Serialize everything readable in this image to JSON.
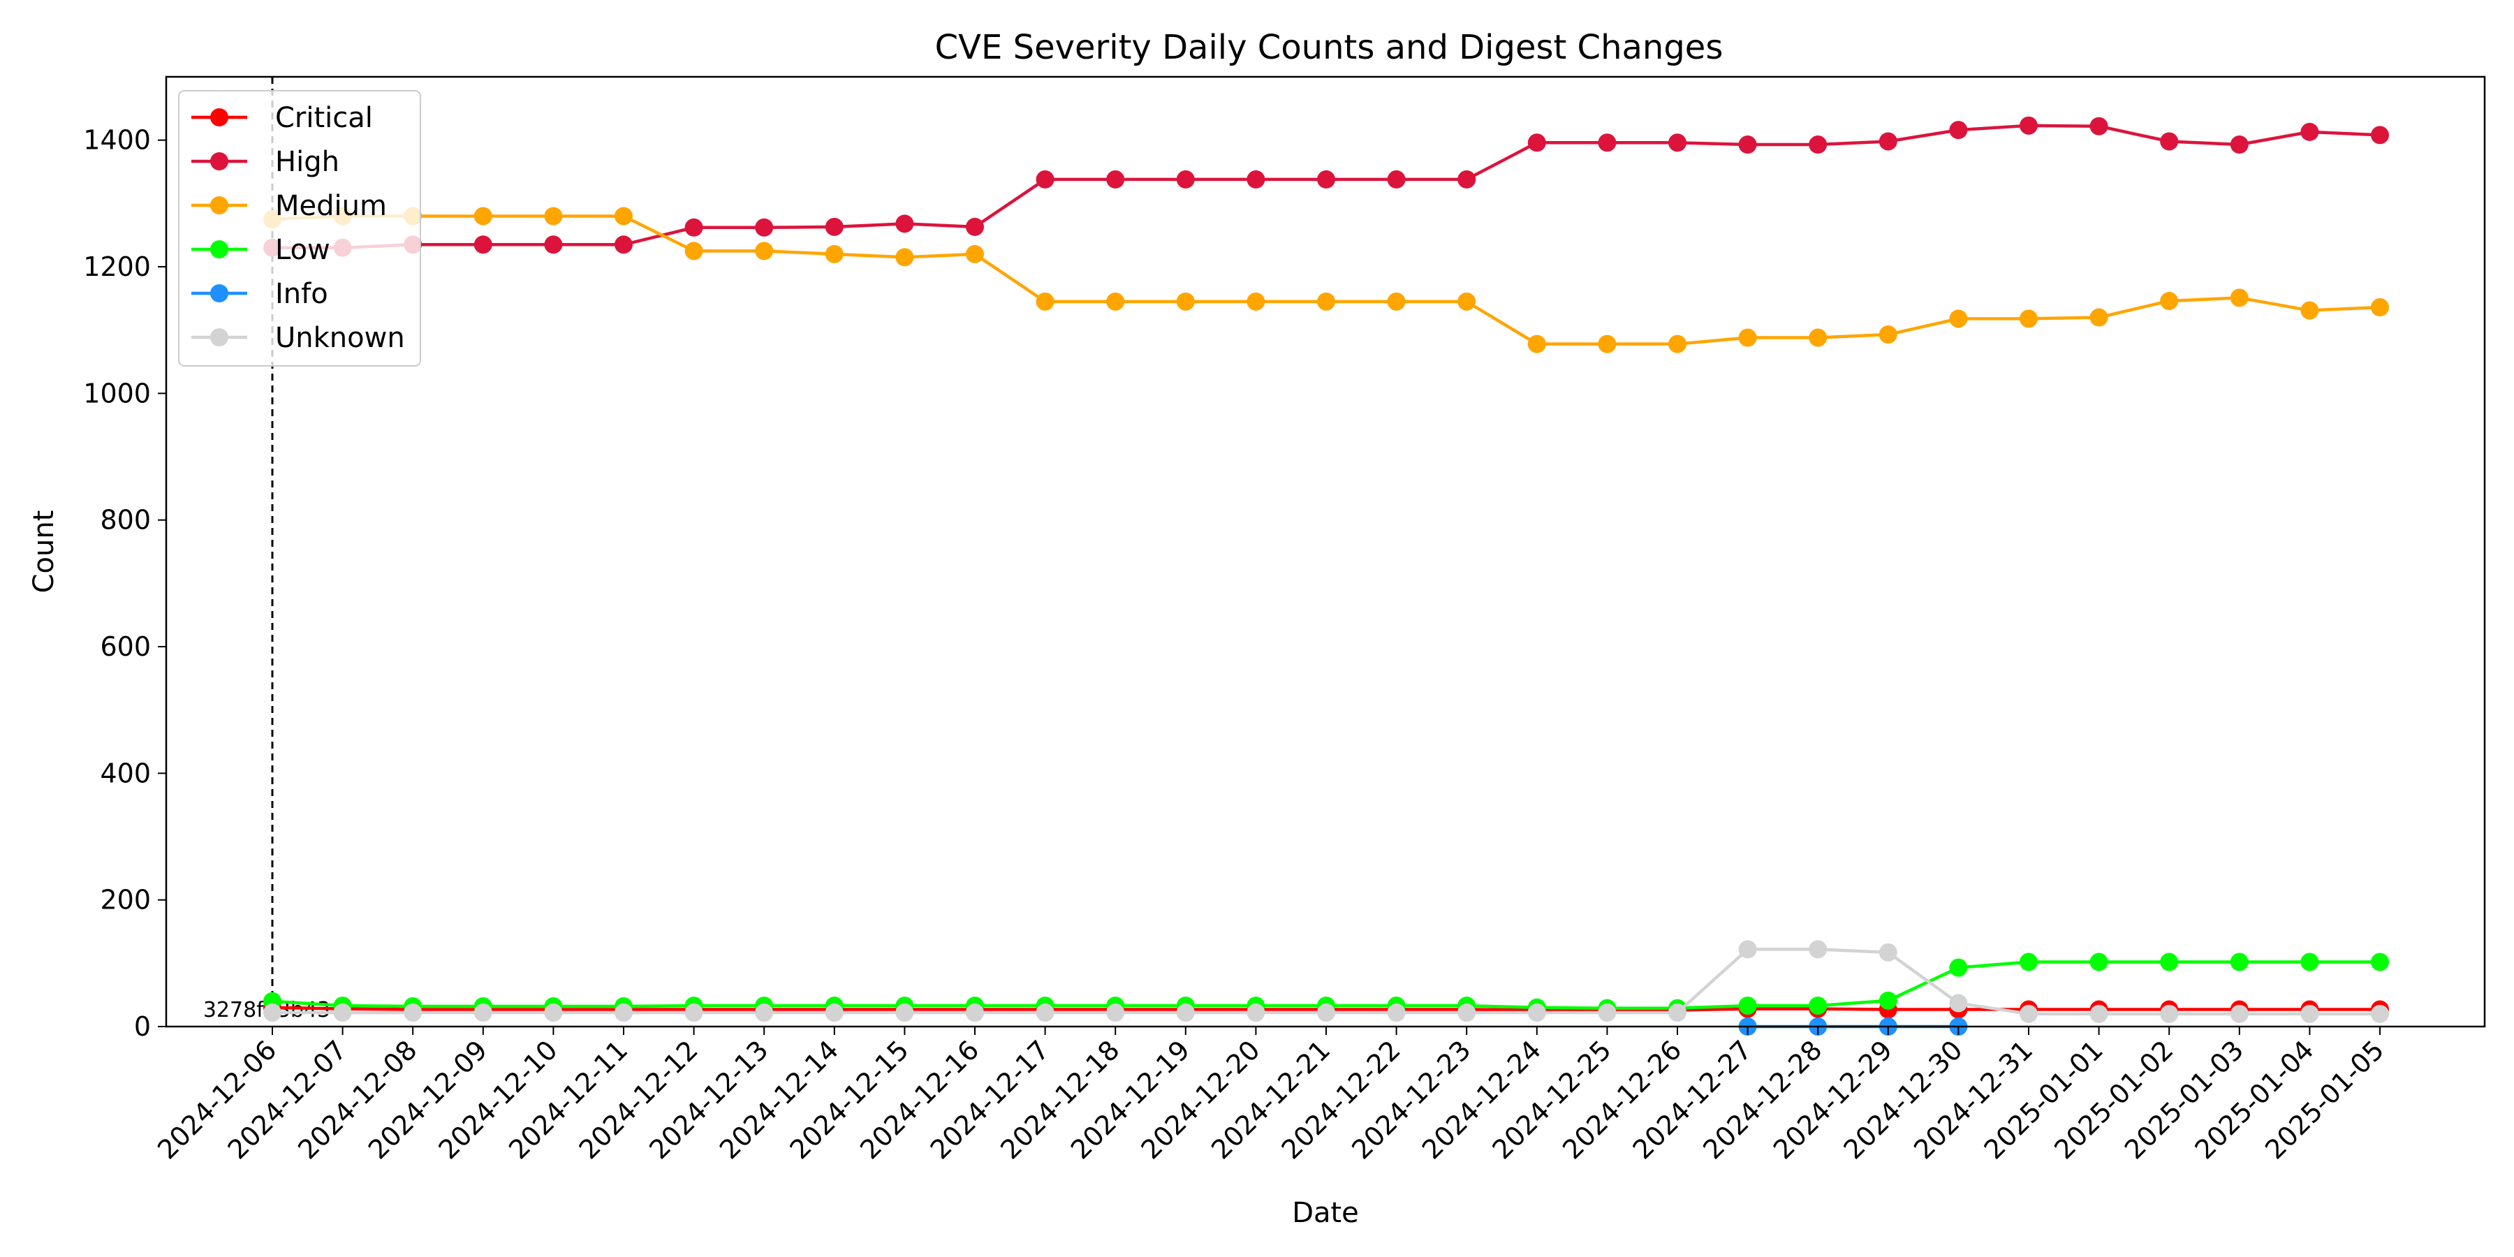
{
  "chart_data": {
    "type": "line",
    "title": "CVE Severity Daily Counts and Digest Changes",
    "xlabel": "Date",
    "ylabel": "Count",
    "ylim": [
      0,
      1500
    ],
    "yticks": [
      0,
      200,
      400,
      600,
      800,
      1000,
      1200,
      1400
    ],
    "grid": false,
    "legend_position": "top-left",
    "x": [
      "2024-12-06",
      "2024-12-07",
      "2024-12-08",
      "2024-12-09",
      "2024-12-10",
      "2024-12-11",
      "2024-12-12",
      "2024-12-13",
      "2024-12-14",
      "2024-12-15",
      "2024-12-16",
      "2024-12-17",
      "2024-12-18",
      "2024-12-19",
      "2024-12-20",
      "2024-12-21",
      "2024-12-22",
      "2024-12-23",
      "2024-12-24",
      "2024-12-25",
      "2024-12-26",
      "2024-12-27",
      "2024-12-28",
      "2024-12-29",
      "2024-12-30",
      "2024-12-31",
      "2025-01-01",
      "2025-01-02",
      "2025-01-03",
      "2025-01-04",
      "2025-01-05"
    ],
    "series": [
      {
        "name": "Critical",
        "color": "#ff0000",
        "x": [
          "2024-12-06",
          "2024-12-07",
          "2024-12-08",
          "2024-12-09",
          "2024-12-10",
          "2024-12-11",
          "2024-12-12",
          "2024-12-13",
          "2024-12-14",
          "2024-12-15",
          "2024-12-16",
          "2024-12-17",
          "2024-12-18",
          "2024-12-19",
          "2024-12-20",
          "2024-12-21",
          "2024-12-22",
          "2024-12-23",
          "2024-12-24",
          "2024-12-25",
          "2024-12-26",
          "2024-12-27",
          "2024-12-28",
          "2024-12-29",
          "2024-12-30",
          "2024-12-31",
          "2025-01-01",
          "2025-01-02",
          "2025-01-03",
          "2025-01-04",
          "2025-01-05"
        ],
        "values": [
          30,
          28,
          27,
          27,
          27,
          27,
          27,
          27,
          27,
          27,
          27,
          27,
          27,
          27,
          27,
          27,
          27,
          27,
          26,
          26,
          26,
          28,
          28,
          27,
          27,
          27,
          27,
          27,
          27,
          27,
          27
        ]
      },
      {
        "name": "High",
        "color": "#dc143c",
        "x": [
          "2024-12-06",
          "2024-12-07",
          "2024-12-08",
          "2024-12-09",
          "2024-12-10",
          "2024-12-11",
          "2024-12-12",
          "2024-12-13",
          "2024-12-14",
          "2024-12-15",
          "2024-12-16",
          "2024-12-17",
          "2024-12-18",
          "2024-12-19",
          "2024-12-20",
          "2024-12-21",
          "2024-12-22",
          "2024-12-23",
          "2024-12-24",
          "2024-12-25",
          "2024-12-26",
          "2024-12-27",
          "2024-12-28",
          "2024-12-29",
          "2024-12-30",
          "2024-12-31",
          "2025-01-01",
          "2025-01-02",
          "2025-01-03",
          "2025-01-04",
          "2025-01-05"
        ],
        "values": [
          1230,
          1230,
          1235,
          1235,
          1235,
          1235,
          1262,
          1262,
          1263,
          1268,
          1263,
          1338,
          1338,
          1338,
          1338,
          1338,
          1338,
          1338,
          1396,
          1396,
          1396,
          1393,
          1393,
          1398,
          1416,
          1423,
          1422,
          1398,
          1393,
          1413,
          1408
        ]
      },
      {
        "name": "Medium",
        "color": "#ffa500",
        "x": [
          "2024-12-06",
          "2024-12-07",
          "2024-12-08",
          "2024-12-09",
          "2024-12-10",
          "2024-12-11",
          "2024-12-12",
          "2024-12-13",
          "2024-12-14",
          "2024-12-15",
          "2024-12-16",
          "2024-12-17",
          "2024-12-18",
          "2024-12-19",
          "2024-12-20",
          "2024-12-21",
          "2024-12-22",
          "2024-12-23",
          "2024-12-24",
          "2024-12-25",
          "2024-12-26",
          "2024-12-27",
          "2024-12-28",
          "2024-12-29",
          "2024-12-30",
          "2024-12-31",
          "2025-01-01",
          "2025-01-02",
          "2025-01-03",
          "2025-01-04",
          "2025-01-05"
        ],
        "values": [
          1275,
          1280,
          1280,
          1280,
          1280,
          1280,
          1225,
          1225,
          1220,
          1215,
          1220,
          1145,
          1145,
          1145,
          1145,
          1145,
          1145,
          1145,
          1078,
          1078,
          1078,
          1088,
          1088,
          1093,
          1118,
          1118,
          1120,
          1146,
          1151,
          1131,
          1136
        ]
      },
      {
        "name": "Low",
        "color": "#00ff00",
        "x": [
          "2024-12-06",
          "2024-12-07",
          "2024-12-08",
          "2024-12-09",
          "2024-12-10",
          "2024-12-11",
          "2024-12-12",
          "2024-12-13",
          "2024-12-14",
          "2024-12-15",
          "2024-12-16",
          "2024-12-17",
          "2024-12-18",
          "2024-12-19",
          "2024-12-20",
          "2024-12-21",
          "2024-12-22",
          "2024-12-23",
          "2024-12-24",
          "2024-12-25",
          "2024-12-26",
          "2024-12-27",
          "2024-12-28",
          "2024-12-29",
          "2024-12-30",
          "2024-12-31",
          "2025-01-01",
          "2025-01-02",
          "2025-01-03",
          "2025-01-04",
          "2025-01-05"
        ],
        "values": [
          40,
          33,
          32,
          32,
          32,
          32,
          33,
          33,
          33,
          33,
          33,
          33,
          33,
          33,
          33,
          33,
          33,
          33,
          30,
          29,
          29,
          33,
          33,
          41,
          93,
          102,
          102,
          102,
          102,
          102,
          102
        ]
      },
      {
        "name": "Info",
        "color": "#1e90ff",
        "x": [
          "2024-12-27",
          "2024-12-28",
          "2024-12-29",
          "2024-12-30"
        ],
        "values": [
          0,
          0,
          0,
          0
        ]
      },
      {
        "name": "Unknown",
        "color": "#d3d3d3",
        "x": [
          "2024-12-06",
          "2024-12-07",
          "2024-12-08",
          "2024-12-09",
          "2024-12-10",
          "2024-12-11",
          "2024-12-12",
          "2024-12-13",
          "2024-12-14",
          "2024-12-15",
          "2024-12-16",
          "2024-12-17",
          "2024-12-18",
          "2024-12-19",
          "2024-12-20",
          "2024-12-21",
          "2024-12-22",
          "2024-12-23",
          "2024-12-24",
          "2024-12-25",
          "2024-12-26",
          "2024-12-27",
          "2024-12-28",
          "2024-12-29",
          "2024-12-30",
          "2024-12-31",
          "2025-01-01",
          "2025-01-02",
          "2025-01-03",
          "2025-01-04",
          "2025-01-05"
        ],
        "values": [
          22,
          22,
          22,
          22,
          22,
          22,
          22,
          22,
          22,
          22,
          22,
          22,
          22,
          22,
          22,
          22,
          22,
          22,
          22,
          22,
          22,
          122,
          122,
          117,
          37,
          20,
          20,
          20,
          20,
          20,
          20
        ]
      }
    ],
    "annotations": [
      {
        "x": "2024-12-06",
        "label": "3278f73b43",
        "style": "dashed-vertical-line"
      }
    ]
  }
}
